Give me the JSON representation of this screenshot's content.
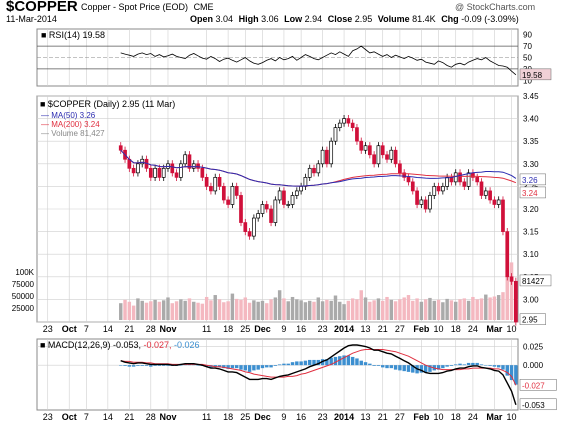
{
  "header": {
    "ticker": "$COPPER",
    "description": "Copper - Spot Price (EOD)",
    "exchange": "CME",
    "date": "11-Mar-2014",
    "open_label": "Open",
    "open": "3.04",
    "high_label": "High",
    "high": "3.06",
    "low_label": "Low",
    "low": "2.94",
    "close_label": "Close",
    "close": "2.95",
    "volume_label": "Volume",
    "volume": "81.4K",
    "chg_label": "Chg",
    "chg": "-0.09 (-3.09%)",
    "brand": "@ StockCharts.com"
  },
  "colors": {
    "up": "#000000",
    "down": "#d0103a",
    "ma50": "#2b2bb0",
    "ma200": "#e03040",
    "rsi": "#000000",
    "macd": "#000000",
    "signal": "#e03040",
    "histogram": "#3c8fd0",
    "volume_up": "#aaaaaa",
    "volume_down": "#f4b8c0",
    "grid": "#cfcfcf"
  },
  "chart_data": [
    {
      "type": "line",
      "panel": "rsi",
      "legend": "RSI(14) 19.58",
      "ylim": [
        0,
        100
      ],
      "y_ticks": [
        "90",
        "70",
        "50",
        "30",
        "10"
      ],
      "reference_lines": [
        70,
        30
      ],
      "last_value_label": "19.58",
      "values": [
        58,
        56,
        54,
        52,
        56,
        58,
        55,
        57,
        52,
        55,
        51,
        53,
        56,
        52,
        50,
        48,
        54,
        57,
        53,
        49,
        47,
        52,
        48,
        43,
        47,
        49,
        45,
        42,
        46,
        50,
        44,
        40,
        38,
        41,
        45,
        48,
        44,
        50,
        46,
        48,
        52,
        45,
        50,
        55,
        52,
        48,
        46,
        50,
        54,
        58,
        55,
        60,
        56,
        52,
        62,
        65,
        70,
        64,
        58,
        60,
        56,
        52,
        55,
        50,
        54,
        51,
        48,
        52,
        49,
        45,
        47,
        42,
        40,
        38,
        44,
        41,
        36,
        33,
        38,
        40,
        37,
        42,
        45,
        48,
        46,
        50,
        44,
        40,
        36,
        35,
        33,
        26,
        19.58
      ]
    },
    {
      "type": "candlestick",
      "panel": "price",
      "title": "$COPPER (Daily) 2.95 (11 Mar)",
      "legend": [
        {
          "name": "MA(50) 3.26",
          "color": "#2b2bb0"
        },
        {
          "name": "MA(200) 3.24",
          "color": "#e03040"
        },
        {
          "name": "Volume 81,427",
          "color": "#888888"
        }
      ],
      "ylim": [
        2.95,
        3.45
      ],
      "y_ticks": [
        "3.45",
        "3.40",
        "3.35",
        "3.30",
        "3.25",
        "3.20",
        "3.15",
        "3.10",
        "3.05",
        "3.00",
        "2.95"
      ],
      "last_labels": {
        "ma50": "3.26",
        "ma200": "3.24",
        "volume": "81427",
        "close": "2.95"
      },
      "closes": [
        3.33,
        3.31,
        3.29,
        3.28,
        3.3,
        3.31,
        3.29,
        3.27,
        3.29,
        3.27,
        3.29,
        3.3,
        3.28,
        3.27,
        3.3,
        3.32,
        3.29,
        3.3,
        3.29,
        3.27,
        3.25,
        3.24,
        3.27,
        3.25,
        3.22,
        3.21,
        3.25,
        3.23,
        3.17,
        3.15,
        3.14,
        3.18,
        3.19,
        3.21,
        3.2,
        3.17,
        3.22,
        3.24,
        3.21,
        3.21,
        3.23,
        3.24,
        3.25,
        3.27,
        3.29,
        3.28,
        3.3,
        3.33,
        3.3,
        3.35,
        3.38,
        3.39,
        3.4,
        3.39,
        3.38,
        3.35,
        3.33,
        3.34,
        3.32,
        3.3,
        3.34,
        3.32,
        3.31,
        3.33,
        3.3,
        3.28,
        3.27,
        3.26,
        3.24,
        3.21,
        3.22,
        3.2,
        3.23,
        3.25,
        3.24,
        3.25,
        3.27,
        3.26,
        3.28,
        3.26,
        3.25,
        3.28,
        3.27,
        3.26,
        3.23,
        3.24,
        3.22,
        3.21,
        3.22,
        3.15,
        3.05,
        3.04,
        2.95
      ],
      "volume_ticks": [
        "100K",
        "75000",
        "50000",
        "25000"
      ],
      "volume": [
        35000,
        42000,
        38000,
        30000,
        45000,
        40000,
        36000,
        39000,
        42000,
        38000,
        41000,
        47000,
        35000,
        39000,
        43000,
        40000,
        45000,
        38000,
        36000,
        34000,
        48000,
        41000,
        52000,
        43000,
        37000,
        39000,
        55000,
        44000,
        42000,
        47000,
        36000,
        41000,
        38000,
        40000,
        35000,
        43000,
        47000,
        62000,
        45000,
        39000,
        48000,
        43000,
        41000,
        37000,
        40000,
        38000,
        47000,
        39000,
        42000,
        40000,
        51000,
        38000,
        33000,
        40000,
        45000,
        43000,
        62000,
        47000,
        38000,
        41000,
        45000,
        40000,
        48000,
        42000,
        39000,
        43000,
        47000,
        52000,
        40000,
        45000,
        38000,
        43000,
        46000,
        40000,
        42000,
        37000,
        44000,
        41000,
        38000,
        43000,
        45000,
        40000,
        48000,
        43000,
        45000,
        53000,
        47000,
        49000,
        52000,
        58000,
        96000,
        120000,
        81427
      ]
    },
    {
      "type": "line",
      "panel": "macd",
      "legend": {
        "label": "MACD(12,26,9)",
        "macd": "-0.053",
        "signal": "-0.027",
        "histogram": "-0.026"
      },
      "ylim": [
        -0.06,
        0.035
      ],
      "y_ticks": [
        "0.025",
        "0.000"
      ],
      "last_labels": {
        "signal": "-0.027",
        "macd": "-0.053"
      },
      "macd": [
        0.006,
        0.004,
        0.003,
        0.002,
        0.003,
        0.003,
        0.002,
        0.001,
        0.001,
        0.001,
        0.001,
        0.001,
        0.0,
        0.0,
        0.001,
        0.002,
        0.002,
        0.002,
        0.001,
        0.0,
        -0.002,
        -0.004,
        -0.004,
        -0.005,
        -0.007,
        -0.009,
        -0.009,
        -0.01,
        -0.013,
        -0.016,
        -0.019,
        -0.019,
        -0.019,
        -0.018,
        -0.018,
        -0.019,
        -0.017,
        -0.015,
        -0.014,
        -0.013,
        -0.011,
        -0.009,
        -0.007,
        -0.005,
        -0.002,
        0.0,
        0.002,
        0.005,
        0.007,
        0.011,
        0.015,
        0.019,
        0.023,
        0.026,
        0.027,
        0.027,
        0.026,
        0.025,
        0.023,
        0.02,
        0.02,
        0.018,
        0.016,
        0.015,
        0.012,
        0.009,
        0.006,
        0.003,
        -0.001,
        -0.005,
        -0.007,
        -0.01,
        -0.011,
        -0.011,
        -0.011,
        -0.01,
        -0.008,
        -0.007,
        -0.005,
        -0.004,
        -0.004,
        -0.002,
        -0.001,
        -0.001,
        -0.003,
        -0.004,
        -0.005,
        -0.007,
        -0.008,
        -0.013,
        -0.024,
        -0.035,
        -0.053
      ],
      "signal": [
        0.006,
        0.005,
        0.005,
        0.004,
        0.004,
        0.004,
        0.003,
        0.003,
        0.002,
        0.002,
        0.002,
        0.002,
        0.001,
        0.001,
        0.001,
        0.001,
        0.001,
        0.001,
        0.001,
        0.001,
        0.0,
        -0.001,
        -0.002,
        -0.002,
        -0.003,
        -0.004,
        -0.005,
        -0.006,
        -0.007,
        -0.009,
        -0.01,
        -0.012,
        -0.013,
        -0.014,
        -0.015,
        -0.016,
        -0.016,
        -0.016,
        -0.016,
        -0.015,
        -0.015,
        -0.014,
        -0.012,
        -0.011,
        -0.009,
        -0.007,
        -0.005,
        -0.003,
        -0.001,
        0.001,
        0.004,
        0.007,
        0.01,
        0.013,
        0.016,
        0.018,
        0.02,
        0.021,
        0.021,
        0.021,
        0.021,
        0.021,
        0.02,
        0.019,
        0.018,
        0.016,
        0.014,
        0.012,
        0.009,
        0.006,
        0.003,
        0.0,
        -0.002,
        -0.004,
        -0.005,
        -0.006,
        -0.006,
        -0.006,
        -0.006,
        -0.006,
        -0.005,
        -0.005,
        -0.004,
        -0.004,
        -0.004,
        -0.004,
        -0.004,
        -0.005,
        -0.005,
        -0.007,
        -0.01,
        -0.015,
        -0.027
      ]
    }
  ],
  "x_axis": {
    "labels": [
      {
        "text": "23",
        "i": 2
      },
      {
        "text": "Oct",
        "i": 7,
        "bold": true
      },
      {
        "text": "7",
        "i": 11
      },
      {
        "text": "14",
        "i": 16
      },
      {
        "text": "21",
        "i": 21
      },
      {
        "text": "28",
        "i": 26
      },
      {
        "text": "Nov",
        "i": 30,
        "bold": true
      },
      {
        "text": "11",
        "i": 39
      },
      {
        "text": "18",
        "i": 44
      },
      {
        "text": "25",
        "i": 48
      },
      {
        "text": "Dec",
        "i": 52,
        "bold": true
      },
      {
        "text": "9",
        "i": 57
      },
      {
        "text": "16",
        "i": 61
      },
      {
        "text": "23",
        "i": 66
      },
      {
        "text": "2014",
        "i": 71,
        "bold": true
      },
      {
        "text": "13",
        "i": 76
      },
      {
        "text": "21",
        "i": 80
      },
      {
        "text": "27",
        "i": 84
      },
      {
        "text": "Feb",
        "i": 89,
        "bold": true
      },
      {
        "text": "10",
        "i": 93
      },
      {
        "text": "18",
        "i": 97
      },
      {
        "text": "24",
        "i": 101
      },
      {
        "text": "Mar",
        "i": 106,
        "bold": true
      },
      {
        "text": "10",
        "i": 110
      }
    ],
    "total_slots": 112
  }
}
